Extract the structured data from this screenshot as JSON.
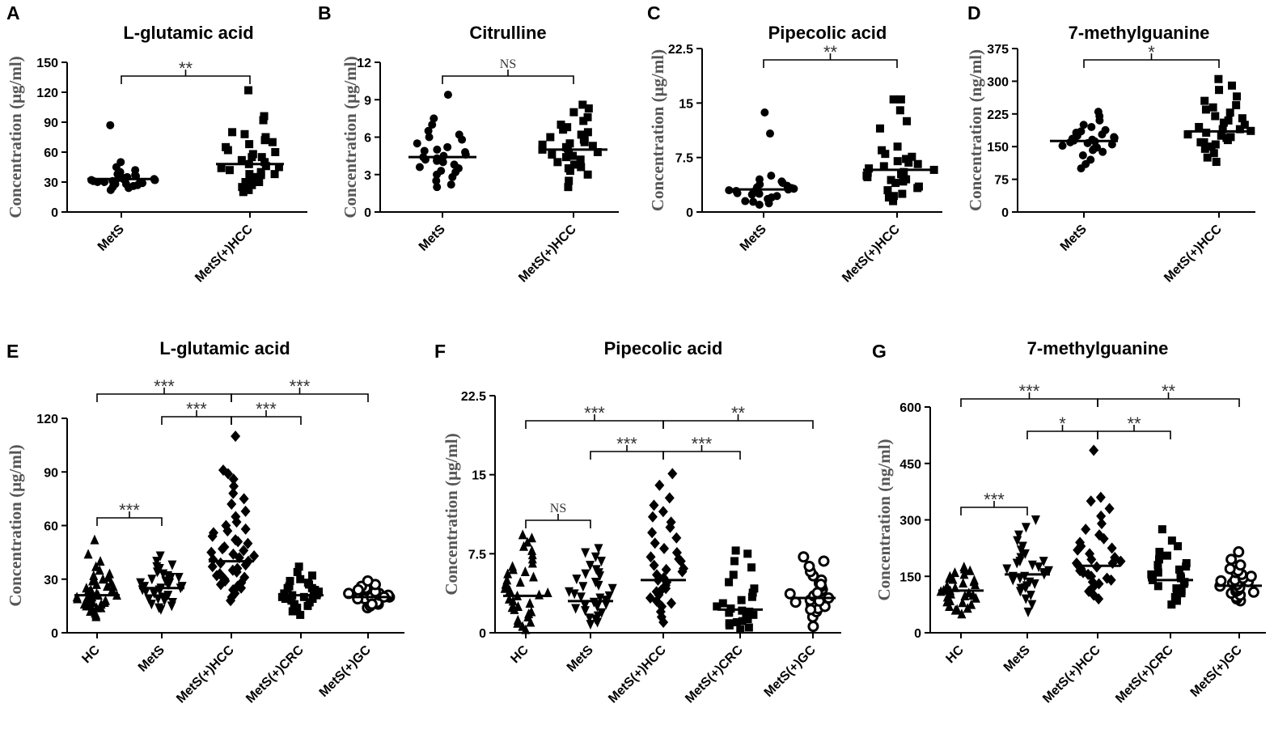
{
  "chart_data": [
    {
      "panel": "A",
      "type": "scatter",
      "title": "L-glutamic acid",
      "ylabel": "Concentration (μg/ml)",
      "ylim": [
        0,
        150
      ],
      "yticks": [
        "0",
        "30",
        "60",
        "90",
        "120",
        "150"
      ],
      "categories": [
        "MetS",
        "MetS(+)HCC"
      ],
      "markers": [
        "circle",
        "square"
      ],
      "series": [
        {
          "name": "MetS",
          "mean": 33,
          "values": [
            25,
            27,
            28,
            29,
            30,
            30,
            31,
            31,
            32,
            32,
            33,
            33,
            34,
            34,
            35,
            36,
            37,
            38,
            40,
            42,
            45,
            50,
            22,
            24,
            26,
            28,
            30,
            32,
            87
          ]
        },
        {
          "name": "MetS(+)HCC",
          "mean": 48,
          "values": [
            20,
            22,
            25,
            27,
            30,
            32,
            33,
            35,
            37,
            38,
            40,
            42,
            44,
            46,
            48,
            50,
            52,
            55,
            58,
            60,
            62,
            65,
            68,
            70,
            72,
            75,
            78,
            80,
            92,
            96,
            122,
            30,
            38,
            45,
            55
          ]
        }
      ],
      "comparisons": [
        {
          "from": 0,
          "to": 1,
          "label": "**"
        }
      ]
    },
    {
      "panel": "B",
      "type": "scatter",
      "title": "Citrulline",
      "ylabel": "Concentration (μg/ml)",
      "ylim": [
        0,
        12
      ],
      "yticks": [
        "0",
        "3",
        "6",
        "9",
        "12"
      ],
      "categories": [
        "MetS",
        "MetS(+)HCC"
      ],
      "markers": [
        "circle",
        "square"
      ],
      "series": [
        {
          "name": "MetS",
          "mean": 4.4,
          "values": [
            2.0,
            2.2,
            2.5,
            2.8,
            3.0,
            3.2,
            3.5,
            3.6,
            3.8,
            4.0,
            4.1,
            4.2,
            4.3,
            4.4,
            4.5,
            4.6,
            4.8,
            5.0,
            5.2,
            5.5,
            5.8,
            6.0,
            6.2,
            6.5,
            7.0,
            7.5,
            9.4,
            3.3,
            4.9
          ]
        },
        {
          "name": "MetS(+)HCC",
          "mean": 5.0,
          "values": [
            2.0,
            2.5,
            3.0,
            3.3,
            3.6,
            3.8,
            4.0,
            4.2,
            4.4,
            4.5,
            4.6,
            4.8,
            5.0,
            5.1,
            5.2,
            5.3,
            5.5,
            5.6,
            5.8,
            6.0,
            6.2,
            6.4,
            6.6,
            6.8,
            7.0,
            7.3,
            7.6,
            8.0,
            8.3,
            8.6,
            4.7,
            5.4,
            5.9,
            3.5
          ]
        }
      ],
      "comparisons": [
        {
          "from": 0,
          "to": 1,
          "label": "NS"
        }
      ]
    },
    {
      "panel": "C",
      "type": "scatter",
      "title": "Pipecolic acid",
      "ylabel": "Concentration (μg/ml)",
      "ylim": [
        0,
        22.5
      ],
      "yticks": [
        "0",
        "7.5",
        "15",
        "22.5"
      ],
      "categories": [
        "MetS",
        "MetS(+)HCC"
      ],
      "markers": [
        "circle",
        "square"
      ],
      "series": [
        {
          "name": "MetS",
          "mean": 3.1,
          "values": [
            1.0,
            1.2,
            1.5,
            1.7,
            2.0,
            2.2,
            2.4,
            2.6,
            2.8,
            3.0,
            3.1,
            3.2,
            3.4,
            3.6,
            3.8,
            4.0,
            4.2,
            4.5,
            5.0,
            1.4,
            2.5,
            3.3,
            10.8,
            13.7,
            1.8,
            2.9
          ]
        },
        {
          "name": "MetS(+)HCC",
          "mean": 5.8,
          "values": [
            1.5,
            2.0,
            2.5,
            3.0,
            3.5,
            4.0,
            4.2,
            4.5,
            4.8,
            5.0,
            5.2,
            5.5,
            5.8,
            6.0,
            6.3,
            6.6,
            7.0,
            7.3,
            7.6,
            8.0,
            8.5,
            9.0,
            11.5,
            12.5,
            14.0,
            15.5,
            15.5,
            3.3,
            5.4,
            6.8,
            2.2,
            4.4
          ]
        }
      ],
      "comparisons": [
        {
          "from": 0,
          "to": 1,
          "label": "**"
        }
      ]
    },
    {
      "panel": "D",
      "type": "scatter",
      "title": "7-methylguanine",
      "ylabel": "Concentration (ng/ml)",
      "ylim": [
        0,
        375
      ],
      "yticks": [
        "0",
        "75",
        "150",
        "225",
        "300",
        "375"
      ],
      "categories": [
        "MetS",
        "MetS(+)HCC"
      ],
      "markers": [
        "circle",
        "square"
      ],
      "series": [
        {
          "name": "MetS",
          "mean": 163,
          "values": [
            100,
            110,
            120,
            130,
            138,
            142,
            148,
            152,
            155,
            158,
            160,
            162,
            164,
            166,
            168,
            170,
            172,
            175,
            178,
            182,
            188,
            195,
            200,
            210,
            220,
            230,
            145,
            185
          ]
        },
        {
          "name": "MetS(+)HCC",
          "mean": 185,
          "values": [
            115,
            125,
            135,
            145,
            150,
            155,
            160,
            165,
            170,
            175,
            178,
            182,
            186,
            190,
            195,
            200,
            205,
            210,
            215,
            220,
            228,
            235,
            245,
            255,
            265,
            280,
            290,
            305,
            160,
            190,
            240,
            172
          ]
        }
      ],
      "comparisons": [
        {
          "from": 0,
          "to": 1,
          "label": "*"
        }
      ]
    },
    {
      "panel": "E",
      "type": "scatter",
      "title": "L-glutamic acid",
      "ylabel": "Concentration (μg/ml)",
      "ylim": [
        0,
        120
      ],
      "yticks": [
        "0",
        "30",
        "60",
        "90",
        "120"
      ],
      "categories": [
        "HC",
        "MetS",
        "MetS(+)HCC",
        "MetS(+)CRC",
        "MetS(+)GC"
      ],
      "markers": [
        "triangle",
        "triangle-down",
        "diamond",
        "square",
        "ring"
      ],
      "series": [
        {
          "name": "HC",
          "mean": 21,
          "values": [
            9,
            10,
            11,
            12,
            13,
            14,
            15,
            15,
            16,
            16,
            17,
            17,
            18,
            18,
            19,
            19,
            20,
            20,
            21,
            21,
            22,
            22,
            23,
            23,
            24,
            24,
            25,
            26,
            27,
            28,
            29,
            30,
            31,
            32,
            33,
            35,
            37,
            40,
            44,
            52,
            12,
            14,
            18,
            22,
            26,
            30
          ]
        },
        {
          "name": "MetS",
          "mean": 25,
          "values": [
            13,
            15,
            16,
            17,
            18,
            19,
            20,
            21,
            22,
            23,
            24,
            24,
            25,
            25,
            26,
            26,
            27,
            27,
            28,
            29,
            30,
            31,
            32,
            33,
            34,
            35,
            36,
            38,
            40,
            43,
            14,
            19,
            23,
            28,
            31,
            37
          ]
        },
        {
          "name": "MetS(+)HCC",
          "mean": 40,
          "values": [
            18,
            20,
            22,
            24,
            25,
            27,
            28,
            30,
            31,
            32,
            33,
            34,
            35,
            36,
            37,
            38,
            39,
            40,
            41,
            42,
            43,
            44,
            45,
            46,
            48,
            50,
            52,
            54,
            56,
            58,
            60,
            62,
            65,
            68,
            72,
            75,
            78,
            82,
            86,
            89,
            91,
            110,
            26,
            29,
            47,
            51,
            57
          ]
        },
        {
          "name": "MetS(+)CRC",
          "mean": 21,
          "values": [
            10,
            12,
            14,
            15,
            16,
            17,
            18,
            19,
            20,
            20,
            21,
            21,
            22,
            22,
            23,
            23,
            24,
            25,
            26,
            27,
            28,
            29,
            30,
            32,
            34,
            37,
            15,
            19,
            25
          ]
        },
        {
          "name": "MetS(+)GC",
          "mean": 20,
          "values": [
            14,
            15,
            16,
            17,
            17,
            18,
            18,
            19,
            19,
            20,
            20,
            21,
            21,
            22,
            22,
            23,
            24,
            25,
            26,
            27,
            29,
            16,
            20,
            24
          ]
        }
      ],
      "comparisons": [
        {
          "from": 0,
          "to": 1,
          "label": "***"
        },
        {
          "from": 1,
          "to": 2,
          "label": "***"
        },
        {
          "from": 2,
          "to": 3,
          "label": "***"
        },
        {
          "from": 0,
          "to": 2,
          "label": "***"
        },
        {
          "from": 2,
          "to": 4,
          "label": "***"
        }
      ]
    },
    {
      "panel": "F",
      "type": "scatter",
      "title": "Pipecolic acid",
      "ylabel": "Concentration (μg/ml)",
      "ylim": [
        0,
        22.5
      ],
      "yticks": [
        "0",
        "7.5",
        "15",
        "22.5"
      ],
      "categories": [
        "HC",
        "MetS",
        "MetS(+)HCC",
        "MetS(+)CRC",
        "MetS(+)GC"
      ],
      "markers": [
        "triangle",
        "triangle-down",
        "diamond",
        "square",
        "ring"
      ],
      "series": [
        {
          "name": "HC",
          "mean": 3.5,
          "values": [
            0.3,
            0.6,
            0.9,
            1.2,
            1.5,
            1.8,
            2.0,
            2.2,
            2.5,
            2.8,
            3.0,
            3.2,
            3.5,
            3.8,
            4.0,
            4.2,
            4.5,
            4.8,
            5.0,
            5.3,
            5.6,
            6.0,
            6.3,
            6.6,
            7.0,
            7.4,
            7.8,
            8.2,
            8.6,
            9.0,
            9.3,
            1.0,
            2.4,
            3.6,
            4.6,
            5.8
          ]
        },
        {
          "name": "MetS",
          "mean": 3.0,
          "values": [
            0.8,
            1.0,
            1.3,
            1.6,
            1.9,
            2.1,
            2.3,
            2.5,
            2.7,
            2.9,
            3.1,
            3.3,
            3.5,
            3.7,
            3.9,
            4.2,
            4.5,
            4.8,
            5.1,
            5.4,
            5.7,
            6.0,
            6.4,
            6.8,
            7.2,
            7.6,
            8.0,
            1.4,
            2.6,
            3.4,
            4.4,
            5.6
          ]
        },
        {
          "name": "MetS(+)HCC",
          "mean": 5.0,
          "values": [
            1.0,
            1.5,
            2.0,
            2.5,
            3.0,
            3.3,
            3.6,
            3.9,
            4.2,
            4.5,
            4.8,
            5.0,
            5.2,
            5.5,
            5.8,
            6.1,
            6.4,
            6.8,
            7.2,
            7.6,
            8.0,
            8.5,
            9.0,
            9.5,
            10.0,
            10.5,
            11.0,
            11.5,
            12.1,
            12.8,
            14.0,
            15.1,
            2.8,
            4.0,
            6.0,
            7.0
          ]
        },
        {
          "name": "MetS(+)CRC",
          "mean": 2.2,
          "values": [
            0.3,
            0.5,
            0.7,
            0.9,
            1.1,
            1.3,
            1.5,
            1.7,
            1.9,
            2.1,
            2.3,
            2.5,
            2.8,
            3.1,
            3.4,
            3.8,
            4.2,
            4.8,
            5.5,
            6.2,
            6.8,
            7.5,
            7.8,
            1.0,
            2.0
          ]
        },
        {
          "name": "MetS(+)GC",
          "mean": 3.3,
          "values": [
            0.6,
            1.5,
            2.0,
            2.3,
            2.5,
            2.7,
            2.9,
            3.1,
            3.3,
            3.5,
            3.7,
            3.9,
            4.1,
            4.4,
            4.7,
            5.0,
            5.4,
            5.8,
            6.3,
            6.8,
            7.2,
            2.2,
            3.0,
            3.8,
            4.6
          ]
        }
      ],
      "comparisons": [
        {
          "from": 0,
          "to": 1,
          "label": "NS"
        },
        {
          "from": 1,
          "to": 2,
          "label": "***"
        },
        {
          "from": 2,
          "to": 3,
          "label": "***"
        },
        {
          "from": 0,
          "to": 2,
          "label": "***"
        },
        {
          "from": 2,
          "to": 4,
          "label": "**"
        }
      ]
    },
    {
      "panel": "G",
      "type": "scatter",
      "title": "7-methylguanine",
      "ylabel": "Concentration (ng/ml)",
      "ylim": [
        0,
        600
      ],
      "yticks": [
        "0",
        "150",
        "300",
        "450",
        "600"
      ],
      "categories": [
        "HC",
        "MetS",
        "MetS(+)HCC",
        "MetS(+)CRC",
        "MetS(+)GC"
      ],
      "markers": [
        "triangle",
        "triangle-down",
        "diamond",
        "square",
        "ring"
      ],
      "series": [
        {
          "name": "HC",
          "mean": 112,
          "values": [
            50,
            60,
            65,
            70,
            75,
            80,
            85,
            88,
            92,
            95,
            98,
            100,
            103,
            106,
            110,
            113,
            116,
            120,
            124,
            128,
            132,
            136,
            140,
            145,
            150,
            155,
            160,
            165,
            170,
            175,
            62,
            82,
            112,
            142
          ]
        },
        {
          "name": "MetS",
          "mean": 155,
          "values": [
            55,
            75,
            90,
            100,
            110,
            118,
            125,
            130,
            135,
            140,
            145,
            150,
            155,
            160,
            165,
            170,
            175,
            180,
            185,
            190,
            200,
            210,
            220,
            230,
            245,
            260,
            280,
            300,
            120,
            150,
            190
          ]
        },
        {
          "name": "MetS(+)HCC",
          "mean": 178,
          "values": [
            90,
            100,
            110,
            120,
            130,
            140,
            145,
            150,
            155,
            160,
            165,
            170,
            175,
            180,
            185,
            190,
            195,
            200,
            210,
            220,
            230,
            240,
            250,
            260,
            275,
            290,
            310,
            330,
            350,
            360,
            485,
            135,
            185,
            225
          ]
        },
        {
          "name": "MetS(+)CRC",
          "mean": 140,
          "values": [
            75,
            85,
            95,
            105,
            112,
            118,
            124,
            130,
            135,
            140,
            145,
            150,
            155,
            160,
            168,
            176,
            185,
            195,
            205,
            215,
            230,
            245,
            275,
            100,
            150,
            180
          ]
        },
        {
          "name": "MetS(+)GC",
          "mean": 125,
          "values": [
            85,
            90,
            95,
            100,
            105,
            110,
            113,
            116,
            120,
            124,
            128,
            132,
            136,
            140,
            145,
            150,
            155,
            160,
            165,
            170,
            180,
            195,
            215,
            108,
            138
          ]
        }
      ],
      "comparisons": [
        {
          "from": 0,
          "to": 1,
          "label": "***"
        },
        {
          "from": 1,
          "to": 2,
          "label": "*"
        },
        {
          "from": 2,
          "to": 3,
          "label": "**"
        },
        {
          "from": 0,
          "to": 2,
          "label": "***"
        },
        {
          "from": 2,
          "to": 4,
          "label": "**"
        }
      ]
    }
  ]
}
